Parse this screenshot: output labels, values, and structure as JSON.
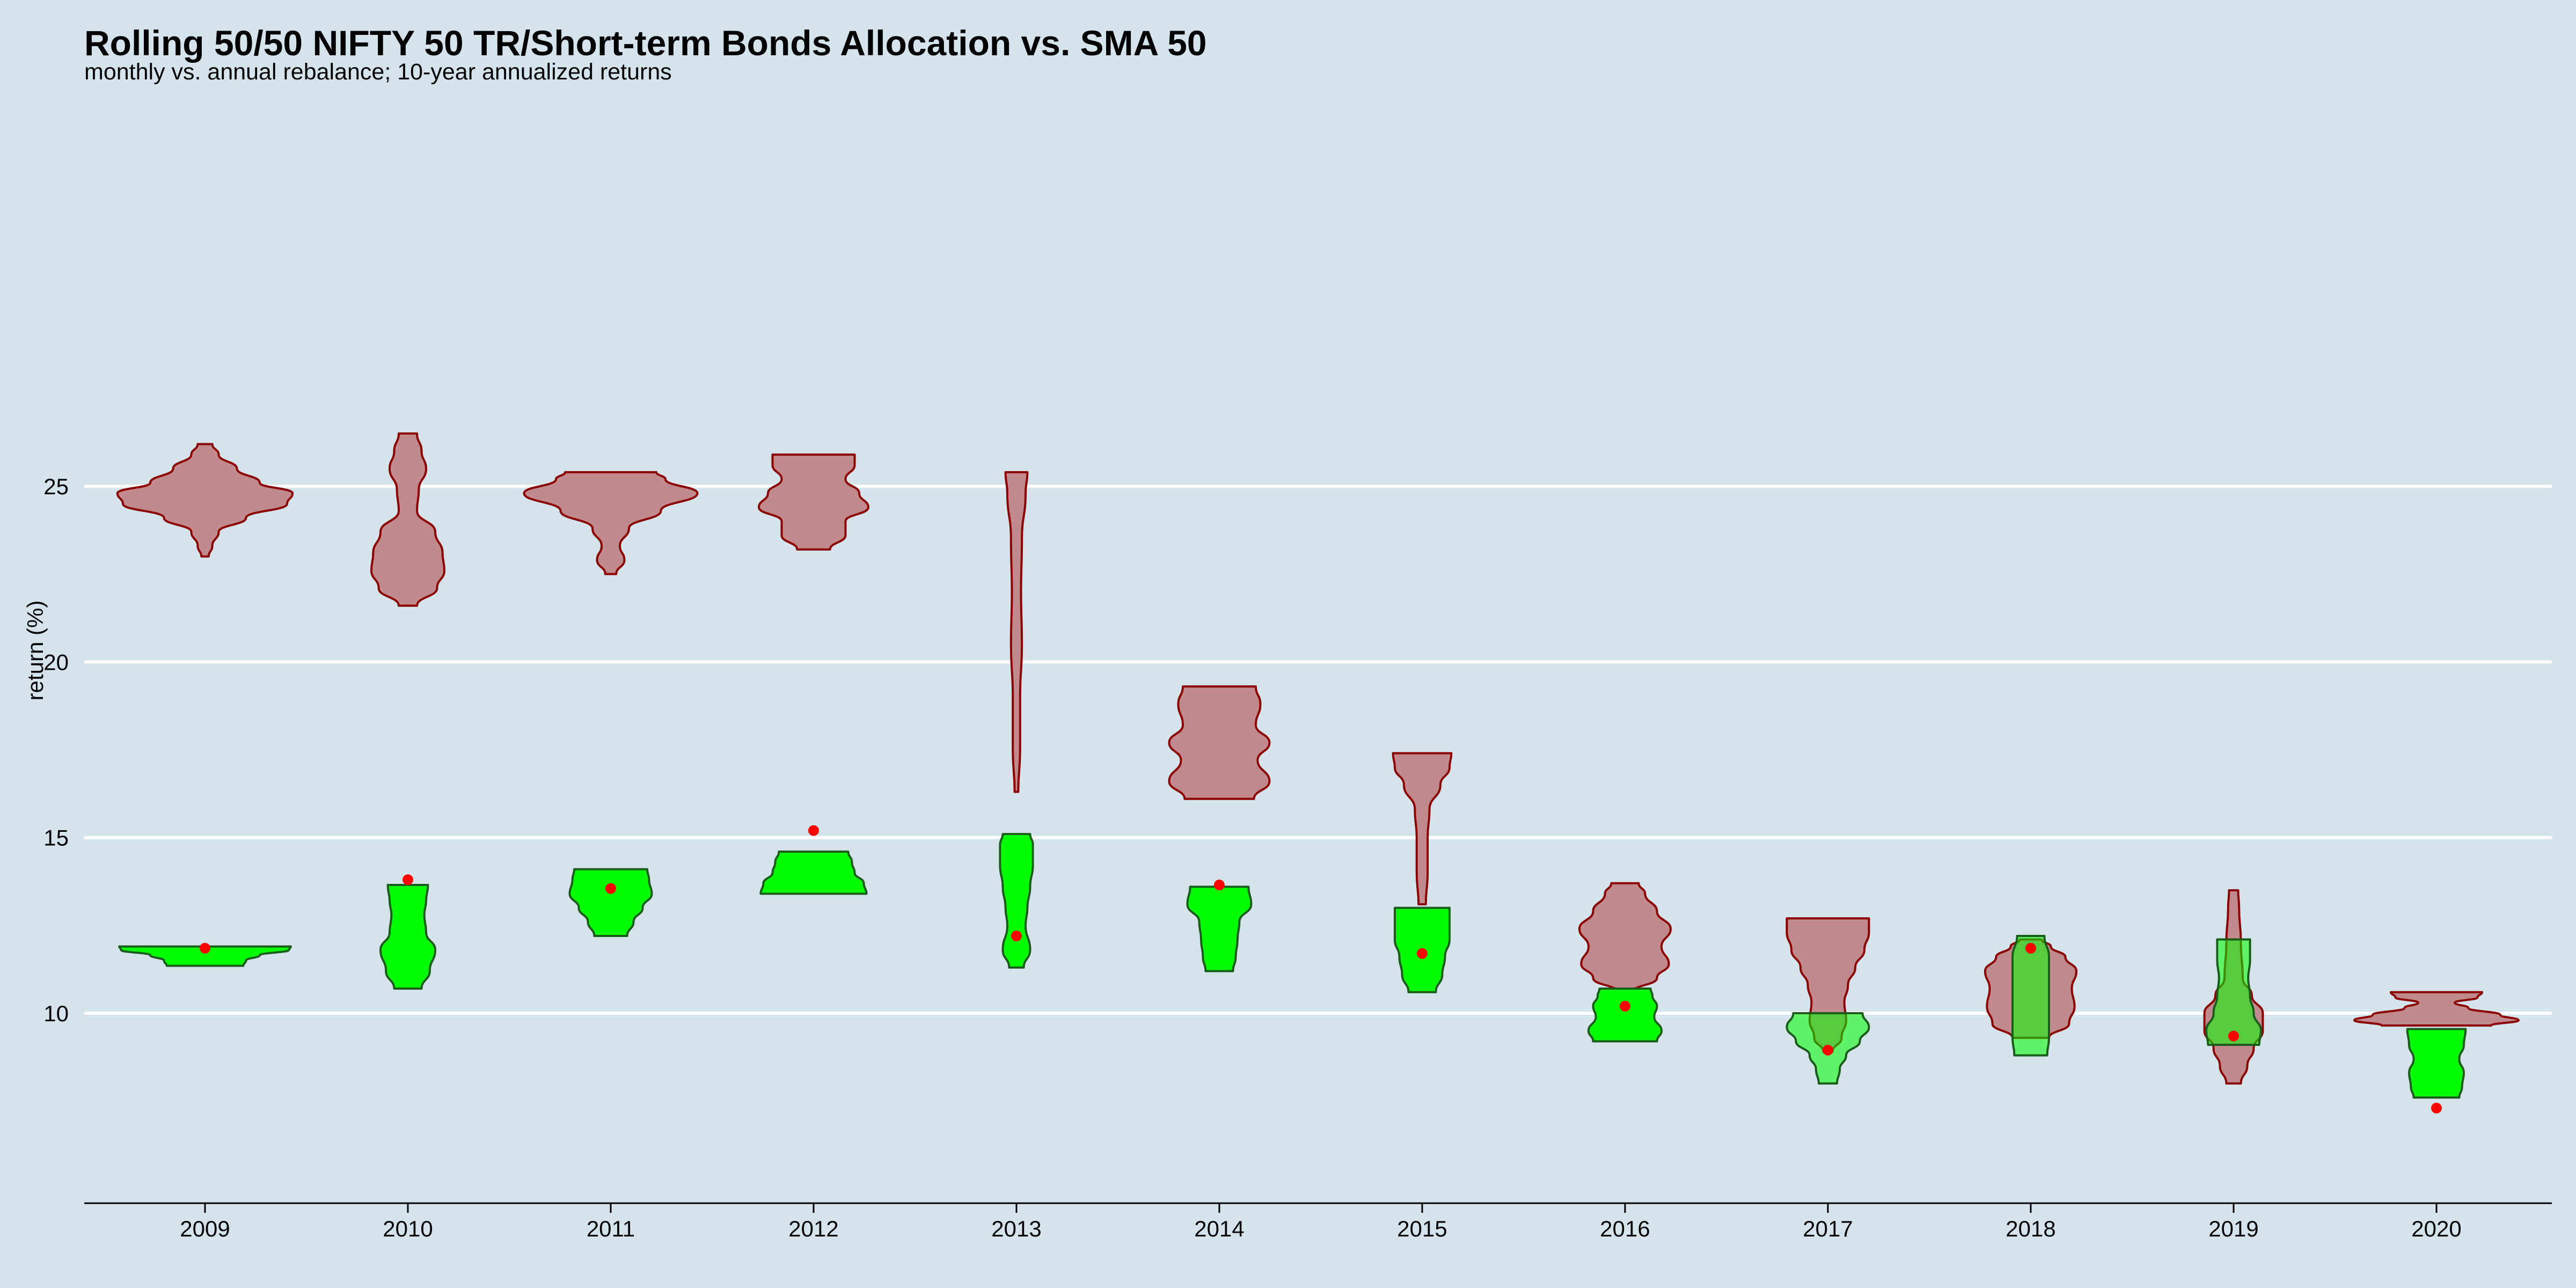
{
  "chart_data": {
    "type": "violin",
    "title": "Rolling 50/50 NIFTY 50 TR/Short-term Bonds Allocation vs. SMA 50",
    "subtitle": "monthly vs. annual rebalance; 10-year annualized returns",
    "xlabel": "",
    "ylabel": "return (%)",
    "ylim": [
      7.2,
      26.4
    ],
    "yticks": [
      10,
      15,
      20,
      25
    ],
    "grid": "horizontal",
    "categories": [
      "2009",
      "2010",
      "2011",
      "2012",
      "2013",
      "2014",
      "2015",
      "2016",
      "2017",
      "2018",
      "2019",
      "2020"
    ],
    "colors": {
      "background": "#d5e4eb",
      "rebalance_fill": "#c28a8c",
      "rebalance_stroke": "#8b0000",
      "sma_fill": "#00ff00",
      "sma_stroke": "#1a5c1a",
      "point": "#ff0000"
    },
    "series": [
      {
        "id": "rebalance",
        "violins": [
          {
            "x": "2009",
            "profile": [
              [
                23.0,
                0.04
              ],
              [
                23.3,
                0.08
              ],
              [
                23.7,
                0.15
              ],
              [
                24.1,
                0.45
              ],
              [
                24.5,
                0.9
              ],
              [
                24.8,
                0.96
              ],
              [
                25.1,
                0.6
              ],
              [
                25.5,
                0.35
              ],
              [
                25.9,
                0.15
              ],
              [
                26.2,
                0.08
              ]
            ]
          },
          {
            "x": "2010",
            "profile": [
              [
                21.6,
                0.1
              ],
              [
                22.1,
                0.32
              ],
              [
                22.6,
                0.4
              ],
              [
                23.1,
                0.38
              ],
              [
                23.7,
                0.3
              ],
              [
                24.3,
                0.1
              ],
              [
                24.9,
                0.12
              ],
              [
                25.5,
                0.2
              ],
              [
                26.0,
                0.15
              ],
              [
                26.5,
                0.1
              ]
            ]
          },
          {
            "x": "2011",
            "profile": [
              [
                22.5,
                0.06
              ],
              [
                22.9,
                0.15
              ],
              [
                23.3,
                0.1
              ],
              [
                23.8,
                0.2
              ],
              [
                24.3,
                0.55
              ],
              [
                24.8,
                0.95
              ],
              [
                25.2,
                0.6
              ],
              [
                25.4,
                0.5
              ]
            ]
          },
          {
            "x": "2012",
            "profile": [
              [
                23.2,
                0.18
              ],
              [
                23.6,
                0.35
              ],
              [
                24.0,
                0.35
              ],
              [
                24.4,
                0.6
              ],
              [
                24.8,
                0.5
              ],
              [
                25.2,
                0.35
              ],
              [
                25.6,
                0.45
              ],
              [
                25.9,
                0.45
              ]
            ]
          },
          {
            "x": "2013",
            "profile": [
              [
                16.3,
                0.02
              ],
              [
                17.5,
                0.04
              ],
              [
                19.0,
                0.04
              ],
              [
                20.5,
                0.06
              ],
              [
                22.0,
                0.05
              ],
              [
                23.5,
                0.06
              ],
              [
                24.8,
                0.1
              ],
              [
                25.4,
                0.12
              ]
            ]
          },
          {
            "x": "2014",
            "profile": [
              [
                16.1,
                0.38
              ],
              [
                16.6,
                0.55
              ],
              [
                17.2,
                0.42
              ],
              [
                17.7,
                0.55
              ],
              [
                18.2,
                0.4
              ],
              [
                18.8,
                0.45
              ],
              [
                19.3,
                0.4
              ]
            ]
          },
          {
            "x": "2015",
            "profile": [
              [
                13.1,
                0.04
              ],
              [
                14.0,
                0.06
              ],
              [
                15.0,
                0.06
              ],
              [
                15.8,
                0.08
              ],
              [
                16.5,
                0.2
              ],
              [
                17.0,
                0.3
              ],
              [
                17.4,
                0.32
              ]
            ]
          },
          {
            "x": "2016",
            "profile": [
              [
                10.6,
                0.08
              ],
              [
                11.0,
                0.35
              ],
              [
                11.4,
                0.48
              ],
              [
                11.9,
                0.4
              ],
              [
                12.4,
                0.5
              ],
              [
                12.9,
                0.35
              ],
              [
                13.4,
                0.22
              ],
              [
                13.7,
                0.15
              ]
            ]
          },
          {
            "x": "2017",
            "profile": [
              [
                8.9,
                0.05
              ],
              [
                9.3,
                0.15
              ],
              [
                9.8,
                0.2
              ],
              [
                10.3,
                0.18
              ],
              [
                10.8,
                0.22
              ],
              [
                11.3,
                0.3
              ],
              [
                11.8,
                0.4
              ],
              [
                12.3,
                0.45
              ],
              [
                12.7,
                0.45
              ]
            ]
          },
          {
            "x": "2018",
            "profile": [
              [
                9.3,
                0.2
              ],
              [
                9.7,
                0.42
              ],
              [
                10.2,
                0.48
              ],
              [
                10.7,
                0.45
              ],
              [
                11.2,
                0.5
              ],
              [
                11.6,
                0.38
              ],
              [
                11.9,
                0.22
              ],
              [
                12.1,
                0.12
              ]
            ]
          },
          {
            "x": "2019",
            "profile": [
              [
                8.0,
                0.08
              ],
              [
                8.5,
                0.15
              ],
              [
                9.0,
                0.22
              ],
              [
                9.5,
                0.32
              ],
              [
                10.0,
                0.32
              ],
              [
                10.5,
                0.2
              ],
              [
                11.0,
                0.1
              ],
              [
                12.0,
                0.08
              ],
              [
                13.0,
                0.06
              ],
              [
                13.5,
                0.05
              ]
            ]
          },
          {
            "x": "2020",
            "profile": [
              [
                9.65,
                0.6
              ],
              [
                9.8,
                0.9
              ],
              [
                9.95,
                0.7
              ],
              [
                10.15,
                0.35
              ],
              [
                10.3,
                0.2
              ],
              [
                10.45,
                0.45
              ],
              [
                10.6,
                0.5
              ]
            ]
          }
        ]
      },
      {
        "id": "sma",
        "violins": [
          {
            "x": "2009",
            "profile": [
              [
                11.35,
                0.42
              ],
              [
                11.5,
                0.45
              ],
              [
                11.65,
                0.6
              ],
              [
                11.8,
                0.92
              ],
              [
                11.9,
                0.94
              ]
            ]
          },
          {
            "x": "2010",
            "profile": [
              [
                10.7,
                0.15
              ],
              [
                11.2,
                0.24
              ],
              [
                11.8,
                0.3
              ],
              [
                12.3,
                0.2
              ],
              [
                12.8,
                0.18
              ],
              [
                13.2,
                0.2
              ],
              [
                13.65,
                0.22
              ]
            ]
          },
          {
            "x": "2011",
            "profile": [
              [
                12.2,
                0.18
              ],
              [
                12.6,
                0.25
              ],
              [
                13.0,
                0.35
              ],
              [
                13.4,
                0.45
              ],
              [
                13.8,
                0.42
              ],
              [
                14.1,
                0.4
              ]
            ]
          },
          {
            "x": "2012",
            "profile": [
              [
                13.4,
                0.58
              ],
              [
                13.7,
                0.55
              ],
              [
                14.0,
                0.45
              ],
              [
                14.3,
                0.42
              ],
              [
                14.6,
                0.38
              ]
            ]
          },
          {
            "x": "2013",
            "profile": [
              [
                11.3,
                0.08
              ],
              [
                11.8,
                0.15
              ],
              [
                12.5,
                0.1
              ],
              [
                13.0,
                0.12
              ],
              [
                13.6,
                0.15
              ],
              [
                14.2,
                0.18
              ],
              [
                14.8,
                0.18
              ],
              [
                15.1,
                0.15
              ]
            ]
          },
          {
            "x": "2014",
            "profile": [
              [
                11.2,
                0.15
              ],
              [
                11.6,
                0.18
              ],
              [
                12.1,
                0.2
              ],
              [
                12.6,
                0.22
              ],
              [
                13.1,
                0.35
              ],
              [
                13.6,
                0.32
              ]
            ]
          },
          {
            "x": "2015",
            "profile": [
              [
                10.6,
                0.15
              ],
              [
                11.1,
                0.22
              ],
              [
                11.6,
                0.25
              ],
              [
                12.1,
                0.3
              ],
              [
                12.6,
                0.3
              ],
              [
                13.0,
                0.3
              ]
            ]
          },
          {
            "x": "2016",
            "profile": [
              [
                9.2,
                0.35
              ],
              [
                9.5,
                0.4
              ],
              [
                9.9,
                0.32
              ],
              [
                10.2,
                0.35
              ],
              [
                10.5,
                0.3
              ],
              [
                10.7,
                0.28
              ]
            ]
          },
          {
            "x": "2017",
            "profile": [
              [
                8.0,
                0.1
              ],
              [
                8.4,
                0.13
              ],
              [
                8.8,
                0.2
              ],
              [
                9.2,
                0.35
              ],
              [
                9.6,
                0.45
              ],
              [
                10.0,
                0.38
              ]
            ]
          },
          {
            "x": "2018",
            "profile": [
              [
                8.8,
                0.18
              ],
              [
                9.3,
                0.2
              ],
              [
                9.8,
                0.2
              ],
              [
                10.4,
                0.2
              ],
              [
                11.0,
                0.2
              ],
              [
                11.6,
                0.2
              ],
              [
                12.2,
                0.15
              ]
            ]
          },
          {
            "x": "2019",
            "profile": [
              [
                9.1,
                0.28
              ],
              [
                9.5,
                0.3
              ],
              [
                10.0,
                0.22
              ],
              [
                10.5,
                0.18
              ],
              [
                11.0,
                0.16
              ],
              [
                11.5,
                0.18
              ],
              [
                12.1,
                0.18
              ]
            ]
          },
          {
            "x": "2020",
            "profile": [
              [
                7.6,
                0.25
              ],
              [
                7.9,
                0.28
              ],
              [
                8.3,
                0.3
              ],
              [
                8.7,
                0.25
              ],
              [
                9.1,
                0.3
              ],
              [
                9.55,
                0.32
              ]
            ]
          }
        ]
      }
    ],
    "points": [
      {
        "x": "2009",
        "y": 11.85
      },
      {
        "x": "2010",
        "y": 13.8
      },
      {
        "x": "2011",
        "y": 13.55
      },
      {
        "x": "2012",
        "y": 15.2
      },
      {
        "x": "2013",
        "y": 12.2
      },
      {
        "x": "2014",
        "y": 13.65
      },
      {
        "x": "2015",
        "y": 11.7
      },
      {
        "x": "2016",
        "y": 10.2
      },
      {
        "x": "2017",
        "y": 8.95
      },
      {
        "x": "2018",
        "y": 11.85
      },
      {
        "x": "2019",
        "y": 9.35
      },
      {
        "x": "2020",
        "y": 7.3
      }
    ]
  }
}
